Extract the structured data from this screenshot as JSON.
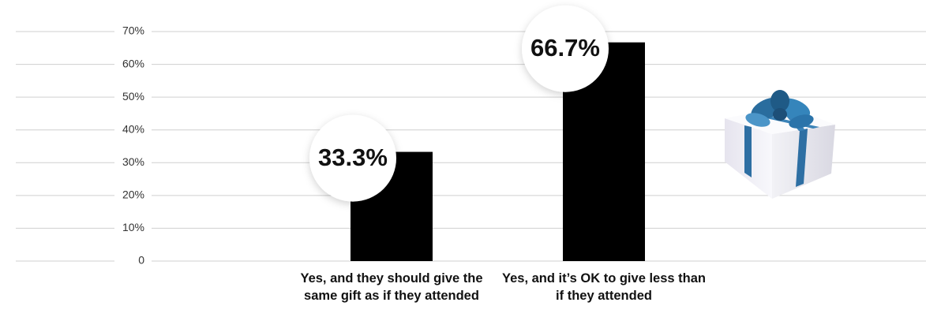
{
  "chart_data": {
    "type": "bar",
    "categories": [
      "Yes, and they should give the same gift as if they attended",
      "Yes, and it’s OK to give less than if they attended"
    ],
    "values": [
      33.3,
      66.7
    ],
    "value_labels": [
      "33.3%",
      "66.7%"
    ],
    "color": "#000000",
    "ylim": [
      0,
      70
    ],
    "yticks": [
      0,
      {
        "value": 10,
        "label": "10%"
      },
      {
        "value": 20,
        "label": "20%"
      },
      {
        "value": 30,
        "label": "30%"
      },
      {
        "value": 40,
        "label": "40%"
      },
      {
        "value": 50,
        "label": "50%"
      },
      {
        "value": 60,
        "label": "60%"
      },
      {
        "value": 70,
        "label": "70%"
      }
    ],
    "grid": true
  }
}
